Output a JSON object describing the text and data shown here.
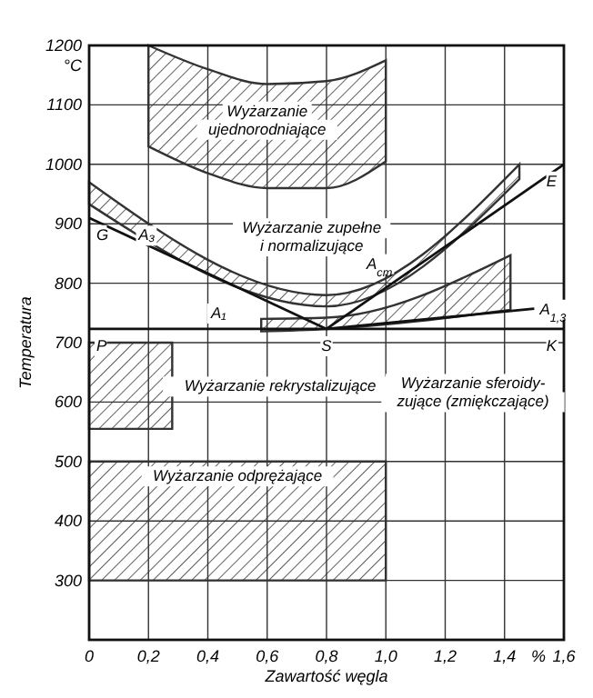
{
  "chart_data": {
    "type": "line",
    "xlabel": "Zawartość węgla",
    "ylabel": "Temperatura",
    "xlim": [
      0,
      1.6
    ],
    "ylim": [
      200,
      1200
    ],
    "xticks": [
      0,
      {
        "value": 0.2,
        "label": "0,2"
      },
      {
        "value": 0.4,
        "label": "0,4"
      },
      {
        "value": 0.6,
        "label": "0,6"
      },
      {
        "value": 0.8,
        "label": "0,8"
      },
      {
        "value": 1,
        "label": "1,0"
      },
      {
        "value": 1.2,
        "label": "1,2"
      },
      {
        "value": 1.4,
        "label": "1,4"
      },
      {
        "value": 1.6,
        "label": "1,6"
      }
    ],
    "yticks": [
      300,
      400,
      500,
      600,
      700,
      800,
      900,
      1000,
      1100,
      1200
    ],
    "grid": true,
    "legend": false,
    "series": [
      {
        "type": "line",
        "color": "#333333",
        "x": [
          0.2,
          0.4,
          0.6,
          0.8,
          1.0
        ],
        "values": [
          null,
          null,
          null,
          null,
          null
        ],
        "lower": [
          1030,
          985,
          960,
          960,
          1005
        ],
        "upper": [
          1200,
          1160,
          1135,
          1140,
          1175
        ]
      },
      {
        "type": "line",
        "color": "#333333",
        "x": [
          0,
          0.8,
          1.45
        ],
        "values": [
          null,
          null,
          null
        ],
        "lower": [
          933,
          761,
          975
        ],
        "upper": [
          970,
          780,
          1000
        ]
      },
      {
        "type": "line",
        "color": "#333333",
        "x": [
          0.58,
          0.8,
          1.42
        ],
        "values": [
          null,
          null,
          null
        ],
        "lower": [
          719,
          723,
          755
        ],
        "upper": [
          740,
          742,
          847
        ]
      },
      {
        "type": "line",
        "color": "#333333",
        "x": [
          0,
          0.28
        ],
        "values": [
          null,
          null
        ],
        "lower": [
          555,
          555
        ],
        "upper": [
          700,
          700
        ]
      },
      {
        "type": "line",
        "color": "#333333",
        "x": [
          0,
          1.0
        ],
        "values": [
          null,
          null
        ],
        "lower": [
          300,
          300
        ],
        "upper": [
          500,
          500
        ]
      },
      {
        "name": "A₃",
        "color": "#111111",
        "x": [
          0,
          0.8
        ],
        "values": [
          910,
          723
        ]
      },
      {
        "name": "A$_{cm}$",
        "color": "#111111",
        "x": [
          0.8,
          1.6
        ],
        "values": [
          723,
          1000
        ]
      },
      {
        "name": "A₁",
        "color": "#111111",
        "x": [
          0,
          1.6
        ],
        "values": [
          723,
          723
        ]
      },
      {
        "name": "A$_{1,3}$",
        "color": "#111111",
        "x": [
          0.8,
          1.5
        ],
        "values": [
          723,
          757
        ]
      }
    ],
    "annotations": [
      "°C",
      "%",
      "Wyżarzanie\nujednorodniające",
      "Wyżarzanie zupełne\ni normalizujące",
      "Wyżarzanie sferoidy-\nzujące (zmiękczające)",
      "Wyżarzanie rekrystalizujące",
      "Wyżarzanie odprężające",
      {
        "text": "G",
        "x": 0,
        "y": 910
      },
      {
        "text": "S",
        "x": 0.8,
        "y": 723
      },
      {
        "text": "P",
        "x": 0,
        "y": 723
      },
      {
        "text": "K",
        "x": 1.6,
        "y": 723
      },
      {
        "text": "E",
        "x": 1.6,
        "y": 1000
      }
    ]
  }
}
